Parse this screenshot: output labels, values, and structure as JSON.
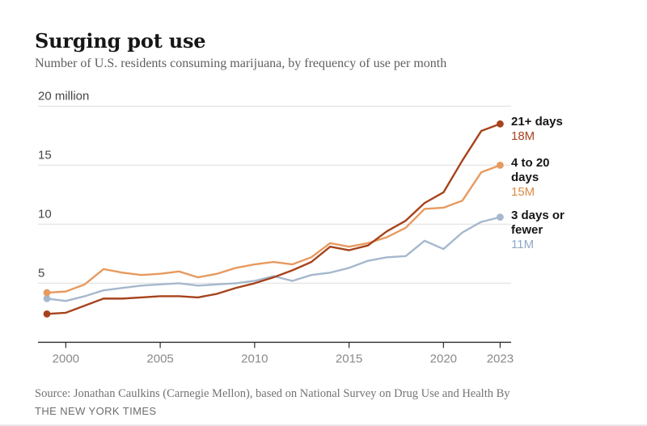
{
  "header": {
    "title": "Surging pot use",
    "subtitle": "Number of U.S. residents consuming marijuana, by frequency of use per month"
  },
  "chart_data": {
    "type": "line",
    "title": "Surging pot use",
    "subtitle": "Number of U.S. residents consuming marijuana, by frequency of use per month",
    "unit": "millions of people",
    "x": [
      1999,
      2000,
      2001,
      2002,
      2003,
      2004,
      2005,
      2006,
      2007,
      2008,
      2009,
      2010,
      2011,
      2012,
      2013,
      2014,
      2015,
      2016,
      2017,
      2018,
      2019,
      2020,
      2021,
      2022,
      2023
    ],
    "series": [
      {
        "name": "3 days or fewer",
        "end_label": "11M",
        "color": "#a5b8cd",
        "value_color": "#8fa8c4",
        "values": [
          3.7,
          3.5,
          3.9,
          4.4,
          4.6,
          4.8,
          4.9,
          5.0,
          4.8,
          4.9,
          5.0,
          5.2,
          5.6,
          5.2,
          5.7,
          5.9,
          6.3,
          6.9,
          7.2,
          7.3,
          8.6,
          7.9,
          9.3,
          10.2,
          10.6
        ]
      },
      {
        "name": "4 to 20 days",
        "end_label": "15M",
        "color": "#e79a5f",
        "value_color": "#db8a46",
        "values": [
          4.2,
          4.3,
          4.9,
          6.2,
          5.9,
          5.7,
          5.8,
          6.0,
          5.5,
          5.8,
          6.3,
          6.6,
          6.8,
          6.6,
          7.2,
          8.4,
          8.1,
          8.4,
          8.9,
          9.7,
          11.3,
          11.4,
          12.0,
          14.4,
          15.0
        ]
      },
      {
        "name": "21+ days",
        "end_label": "18M",
        "color": "#a6431c",
        "value_color": "#a6431c",
        "values": [
          2.4,
          2.5,
          3.1,
          3.7,
          3.7,
          3.8,
          3.9,
          3.9,
          3.8,
          4.1,
          4.6,
          5.0,
          5.5,
          6.1,
          6.8,
          8.1,
          7.8,
          8.2,
          9.4,
          10.3,
          11.8,
          12.7,
          15.4,
          17.9,
          18.5
        ]
      }
    ],
    "y_ticks": [
      {
        "v": 5,
        "label": "5"
      },
      {
        "v": 10,
        "label": "10"
      },
      {
        "v": 15,
        "label": "15"
      },
      {
        "v": 20,
        "label": "20 million"
      }
    ],
    "x_ticks": [
      {
        "v": 2000,
        "label": "2000"
      },
      {
        "v": 2005,
        "label": "2005"
      },
      {
        "v": 2010,
        "label": "2010"
      },
      {
        "v": 2015,
        "label": "2015"
      },
      {
        "v": 2020,
        "label": "2020"
      },
      {
        "v": 2023,
        "label": "2023"
      }
    ],
    "ylim": [
      0,
      20
    ],
    "xlim": [
      1999,
      2023
    ],
    "grid": true,
    "legend_position": "right-of-line-ends"
  },
  "source": {
    "credit": "Source: Jonathan Caulkins (Carnegie Mellon), based on National Survey on Drug Use and Health",
    "byline_prefix": "By",
    "byline": "THE NEW YORK TIMES"
  }
}
